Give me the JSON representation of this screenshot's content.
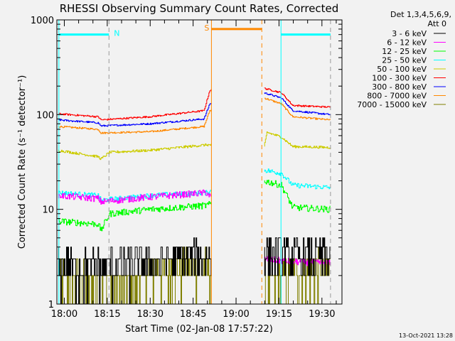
{
  "chart_data": {
    "type": "line",
    "title": "RHESSI Observing Summary Count Rates, Corrected",
    "xlabel": "Start Time (02-Jan-08 17:57:22)",
    "ylabel": "Corrected Count Rate (s⁻¹ detector⁻¹)",
    "yscale": "log",
    "ylim": [
      1,
      1000
    ],
    "xlim_minutes_after_1800": [
      -2.6,
      97
    ],
    "y_tick_labels": [
      "1",
      "10",
      "100",
      "1000"
    ],
    "y_tick_values": [
      1,
      10,
      100,
      1000
    ],
    "x_tick_labels": [
      "18:00",
      "18:15",
      "18:30",
      "18:45",
      "19:00",
      "19:15",
      "19:30"
    ],
    "x_tick_values": [
      0,
      15,
      30,
      45,
      60,
      75,
      90
    ],
    "grid": false,
    "legend": {
      "placement": "right-outside",
      "header": [
        "Det 1,3,4,5,6,9,",
        "Att 0"
      ]
    },
    "data_gap_minutes": [
      51.5,
      70
    ],
    "series": [
      {
        "name": "3 - 6 keV",
        "color": "#000000",
        "noise": 0.5,
        "times": [
          -2,
          12,
          30,
          50,
          70,
          80,
          93
        ],
        "values": [
          2.5,
          2.5,
          2.8,
          3.2,
          3.5,
          3.2,
          3.3
        ]
      },
      {
        "name": "6 - 12 keV",
        "color": "#ff00ff",
        "noise": 0.08,
        "times": [
          -2,
          12,
          13,
          30,
          50,
          70,
          80,
          93
        ],
        "values": [
          14,
          13,
          12,
          13.5,
          15,
          3,
          2.8,
          2.7
        ]
      },
      {
        "name": "12 - 25 keV",
        "color": "#00ff00",
        "noise": 0.08,
        "times": [
          -2,
          12,
          13,
          16,
          30,
          50,
          70,
          76,
          80,
          93
        ],
        "values": [
          7.5,
          7,
          6,
          9,
          10,
          11,
          20,
          18,
          10.5,
          10
        ]
      },
      {
        "name": "25 - 50 keV",
        "color": "#00ffff",
        "noise": 0.06,
        "times": [
          -2,
          12,
          13,
          30,
          50,
          70,
          76,
          80,
          93
        ],
        "values": [
          15,
          14,
          12.5,
          14,
          15,
          26,
          24,
          18,
          17
        ]
      },
      {
        "name": "50 - 100 keV",
        "color": "#cccc00",
        "noise": 0.03,
        "times": [
          -2,
          12,
          13,
          16,
          30,
          50,
          70,
          71,
          76,
          80,
          93
        ],
        "values": [
          42,
          36,
          34,
          40,
          42,
          48,
          45,
          65,
          58,
          46,
          45
        ]
      },
      {
        "name": "100 - 300 keV",
        "color": "#ff0000",
        "noise": 0.02,
        "times": [
          -2,
          12,
          13,
          30,
          49,
          51,
          70,
          76,
          80,
          93
        ],
        "values": [
          102,
          95,
          88,
          95,
          110,
          180,
          190,
          170,
          125,
          120
        ]
      },
      {
        "name": "300 - 800 keV",
        "color": "#0000ff",
        "noise": 0.02,
        "times": [
          -2,
          12,
          13,
          30,
          49,
          51,
          70,
          76,
          80,
          93
        ],
        "values": [
          88,
          82,
          76,
          80,
          90,
          130,
          170,
          150,
          110,
          100
        ]
      },
      {
        "name": "800 - 7000 keV",
        "color": "#ff8800",
        "noise": 0.02,
        "times": [
          -2,
          12,
          13,
          30,
          49,
          51,
          70,
          76,
          80,
          93
        ],
        "values": [
          75,
          70,
          64,
          66,
          75,
          110,
          150,
          130,
          95,
          88
        ]
      },
      {
        "name": "7000 - 15000 keV",
        "color": "#808000",
        "noise": 0.5,
        "times": [
          -2,
          20,
          30,
          50,
          70,
          80,
          93
        ],
        "values": [
          2,
          1.5,
          2.2,
          2.5,
          1.5,
          2.2,
          2.5
        ]
      }
    ],
    "flags": [
      {
        "label": "N",
        "color": "#00ffff",
        "start": -1.9,
        "end": 15.6,
        "level": 700
      },
      {
        "label": "S",
        "color": "#ff8800",
        "start": 51.4,
        "end": 69,
        "level": 800
      },
      {
        "label": "",
        "color": "#00ffff",
        "start": 75.7,
        "end": 93,
        "level": 700
      }
    ]
  },
  "footer": {
    "timestamp": "13-Oct-2021 13:28"
  }
}
